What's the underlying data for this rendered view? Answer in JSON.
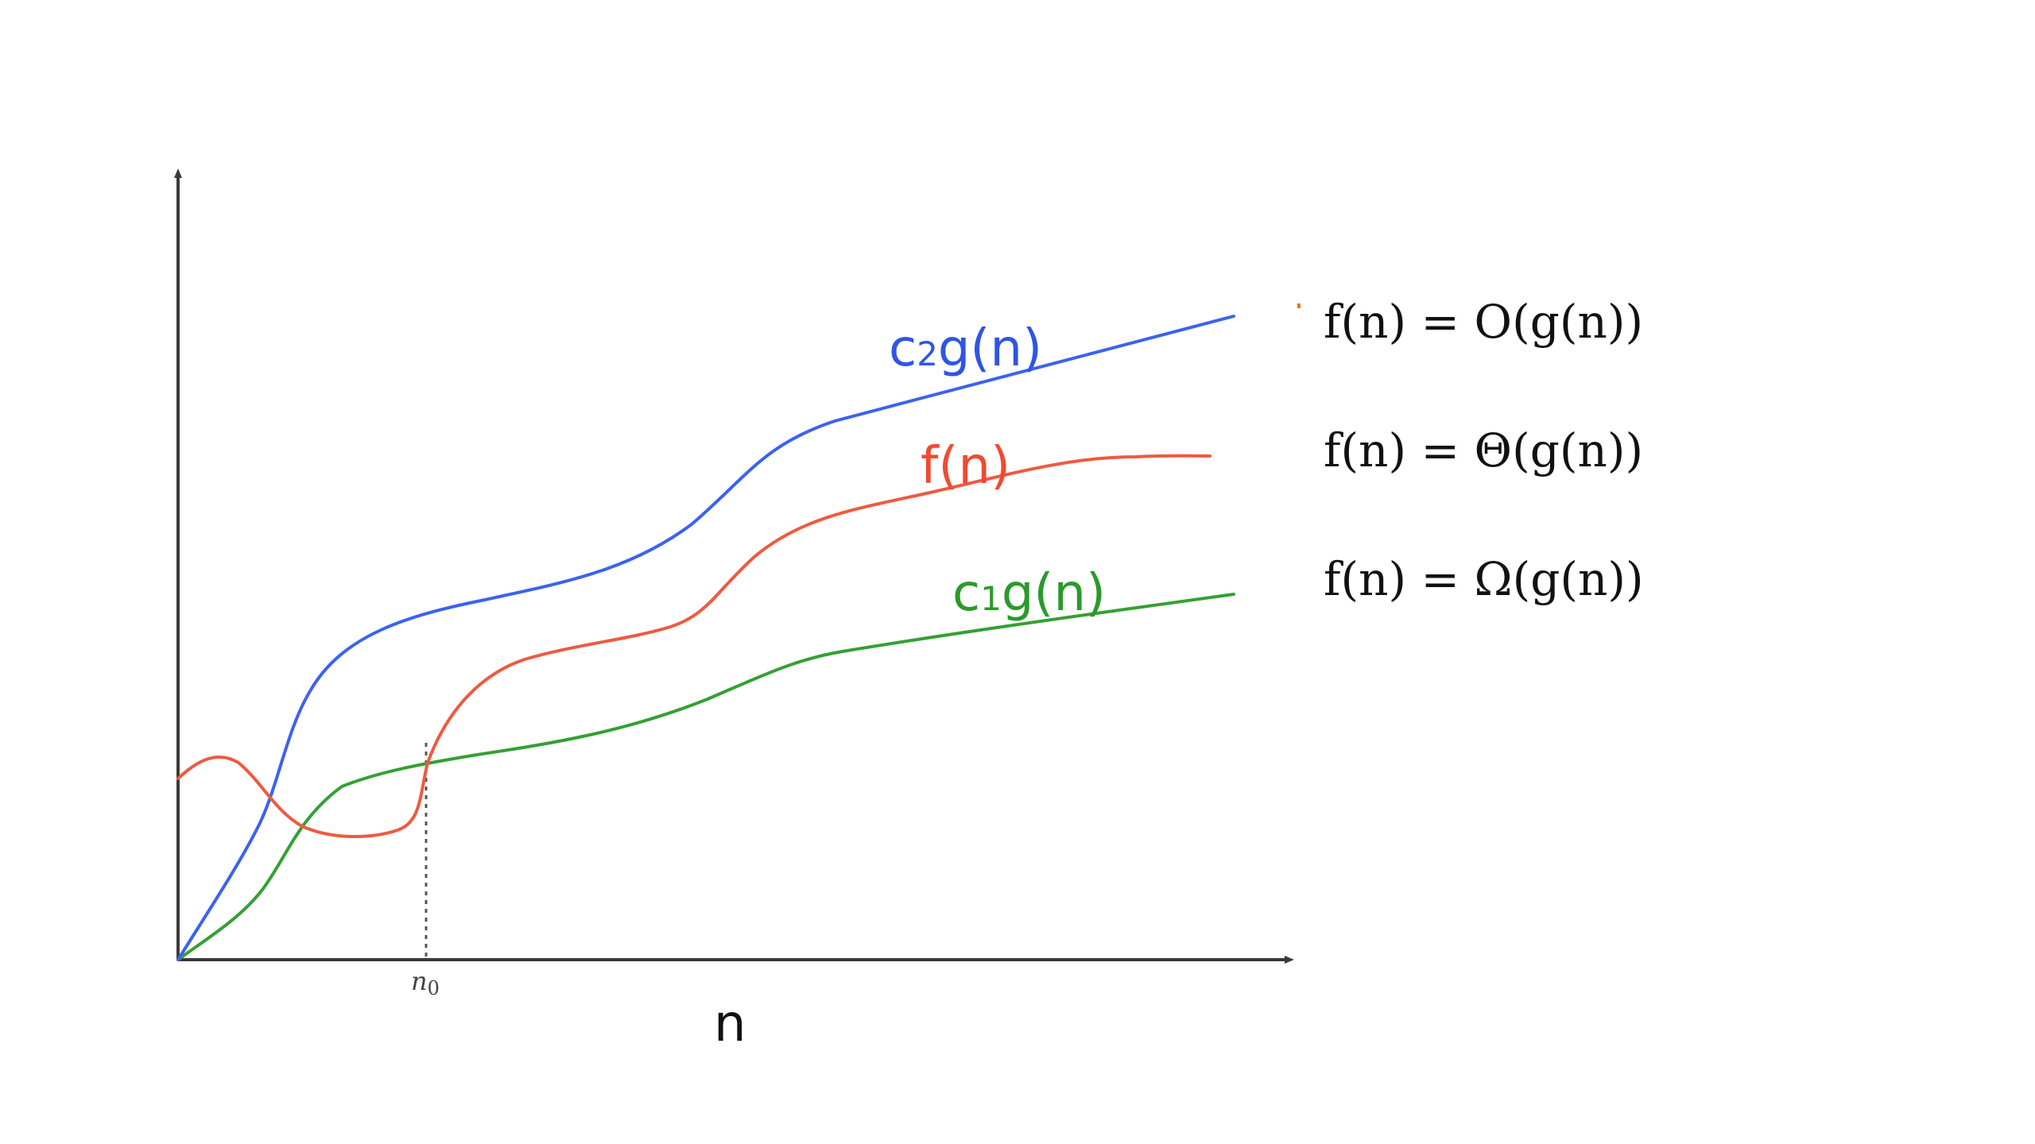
{
  "diagram": {
    "axis_label_x": "n",
    "tick_n0": {
      "base": "n",
      "sub": "0"
    },
    "labels": {
      "upper": {
        "prefix": "c",
        "sub": "2",
        "suffix": "g(n)",
        "color": "#2f55e6"
      },
      "middle": {
        "text": "f(n)",
        "color": "#ee4b33"
      },
      "lower": {
        "prefix": "c",
        "sub": "1",
        "suffix": "g(n)",
        "color": "#2a9a2a"
      }
    },
    "curve_colors": {
      "c2g": "#3b62f0",
      "f": "#ef5a40",
      "c1g": "#34a034"
    },
    "axis_color": "#3a3a3a"
  },
  "equations": [
    "f(n) = O(g(n))",
    "f(n) = Θ(g(n))",
    "f(n) = Ω(g(n))"
  ]
}
